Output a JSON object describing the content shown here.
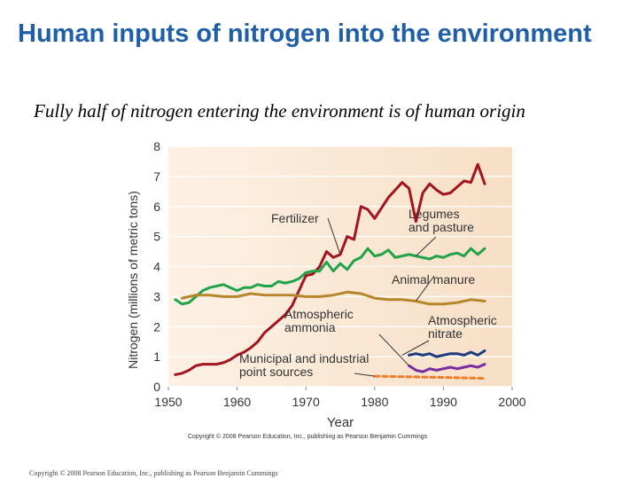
{
  "slide": {
    "title": "Human inputs of nitrogen into the environment",
    "subtitle": "Fully half of nitrogen entering the environment is of human origin",
    "footer": "Copyright © 2008 Pearson Education, Inc., publishing as Pearson Benjamin Cummings"
  },
  "chart_data": {
    "type": "line",
    "title": "",
    "xlabel": "Year",
    "ylabel": "Nitrogen (millions of metric tons)",
    "xlim": [
      1950,
      2000
    ],
    "ylim": [
      0,
      8
    ],
    "x_ticks": [
      1950,
      1960,
      1970,
      1980,
      1990,
      2000
    ],
    "y_ticks": [
      0,
      1,
      2,
      3,
      4,
      5,
      6,
      7,
      8
    ],
    "grid": "horizontal",
    "credit": "Copyright © 2008 Pearson Education, Inc., publishing as Pearson Benjamin Cummings",
    "series": [
      {
        "name": "Fertilizer",
        "color": "#a3141f",
        "x": [
          1951,
          1952,
          1953,
          1954,
          1955,
          1956,
          1957,
          1958,
          1959,
          1960,
          1961,
          1962,
          1963,
          1964,
          1965,
          1966,
          1967,
          1968,
          1969,
          1970,
          1971,
          1972,
          1973,
          1974,
          1975,
          1976,
          1977,
          1978,
          1979,
          1980,
          1981,
          1982,
          1983,
          1984,
          1985,
          1986,
          1987,
          1988,
          1989,
          1990,
          1991,
          1992,
          1993,
          1994,
          1995,
          1996
        ],
        "y": [
          0.4,
          0.45,
          0.55,
          0.7,
          0.75,
          0.75,
          0.75,
          0.8,
          0.9,
          1.05,
          1.15,
          1.3,
          1.5,
          1.8,
          2.0,
          2.2,
          2.4,
          2.7,
          3.2,
          3.7,
          3.75,
          4.0,
          4.5,
          4.3,
          4.4,
          5.0,
          4.9,
          6.0,
          5.9,
          5.6,
          5.95,
          6.3,
          6.55,
          6.8,
          6.6,
          5.5,
          6.45,
          6.75,
          6.55,
          6.4,
          6.45,
          6.65,
          6.85,
          6.8,
          7.4,
          6.75
        ]
      },
      {
        "name": "Legumes and pasture",
        "color": "#22a34a",
        "x": [
          1951,
          1952,
          1953,
          1954,
          1955,
          1956,
          1957,
          1958,
          1959,
          1960,
          1961,
          1962,
          1963,
          1964,
          1965,
          1966,
          1967,
          1968,
          1969,
          1970,
          1971,
          1972,
          1973,
          1974,
          1975,
          1976,
          1977,
          1978,
          1979,
          1980,
          1981,
          1982,
          1983,
          1984,
          1985,
          1986,
          1987,
          1988,
          1989,
          1990,
          1991,
          1992,
          1993,
          1994,
          1995,
          1996
        ],
        "y": [
          2.9,
          2.75,
          2.8,
          3.0,
          3.2,
          3.3,
          3.35,
          3.4,
          3.3,
          3.2,
          3.3,
          3.3,
          3.4,
          3.35,
          3.35,
          3.5,
          3.45,
          3.5,
          3.6,
          3.8,
          3.85,
          3.85,
          4.15,
          3.85,
          4.1,
          3.9,
          4.2,
          4.3,
          4.6,
          4.35,
          4.4,
          4.55,
          4.3,
          4.35,
          4.4,
          4.35,
          4.3,
          4.25,
          4.35,
          4.3,
          4.4,
          4.45,
          4.35,
          4.6,
          4.4,
          4.6
        ]
      },
      {
        "name": "Animal manure",
        "color": "#b8862a",
        "x": [
          1952,
          1954,
          1956,
          1958,
          1960,
          1962,
          1964,
          1966,
          1968,
          1970,
          1972,
          1974,
          1976,
          1978,
          1980,
          1982,
          1984,
          1986,
          1988,
          1990,
          1992,
          1994,
          1996
        ],
        "y": [
          2.95,
          3.05,
          3.05,
          3.0,
          3.0,
          3.1,
          3.05,
          3.05,
          3.05,
          3.0,
          3.0,
          3.05,
          3.15,
          3.1,
          2.95,
          2.9,
          2.9,
          2.85,
          2.75,
          2.75,
          2.8,
          2.9,
          2.85
        ]
      },
      {
        "name": "Atmospheric nitrate",
        "color": "#1c3d80",
        "x": [
          1985,
          1986,
          1987,
          1988,
          1989,
          1990,
          1991,
          1992,
          1993,
          1994,
          1995,
          1996
        ],
        "y": [
          1.05,
          1.1,
          1.05,
          1.1,
          1.0,
          1.05,
          1.1,
          1.1,
          1.05,
          1.15,
          1.05,
          1.2
        ]
      },
      {
        "name": "Atmospheric ammonia",
        "color": "#7a2ca0",
        "x": [
          1985,
          1986,
          1987,
          1988,
          1989,
          1990,
          1991,
          1992,
          1993,
          1994,
          1995,
          1996
        ],
        "y": [
          0.7,
          0.55,
          0.5,
          0.6,
          0.55,
          0.6,
          0.65,
          0.6,
          0.65,
          0.7,
          0.65,
          0.75
        ]
      },
      {
        "name": "Municipal and industrial point sources",
        "color": "#f07d2a",
        "dashed": true,
        "x": [
          1980,
          1985,
          1990,
          1996
        ],
        "y": [
          0.35,
          0.33,
          0.31,
          0.28
        ]
      }
    ],
    "annotations": [
      {
        "text": "Fertilizer",
        "series": "Fertilizer",
        "point_year": 1975
      },
      {
        "text": "Legumes\nand pasture",
        "series": "Legumes and pasture",
        "point_year": 1986
      },
      {
        "text": "Animal manure",
        "series": "Animal manure",
        "point_year": 1986
      },
      {
        "text": "Atmospheric\nammonia",
        "series": "Atmospheric ammonia",
        "point_year": 1985
      },
      {
        "text": "Atmospheric\nnitrate",
        "series": "Atmospheric nitrate",
        "point_year": 1984
      },
      {
        "text": "Municipal and industrial\npoint sources",
        "series": "Municipal and industrial point sources",
        "point_year": 1980
      }
    ]
  }
}
